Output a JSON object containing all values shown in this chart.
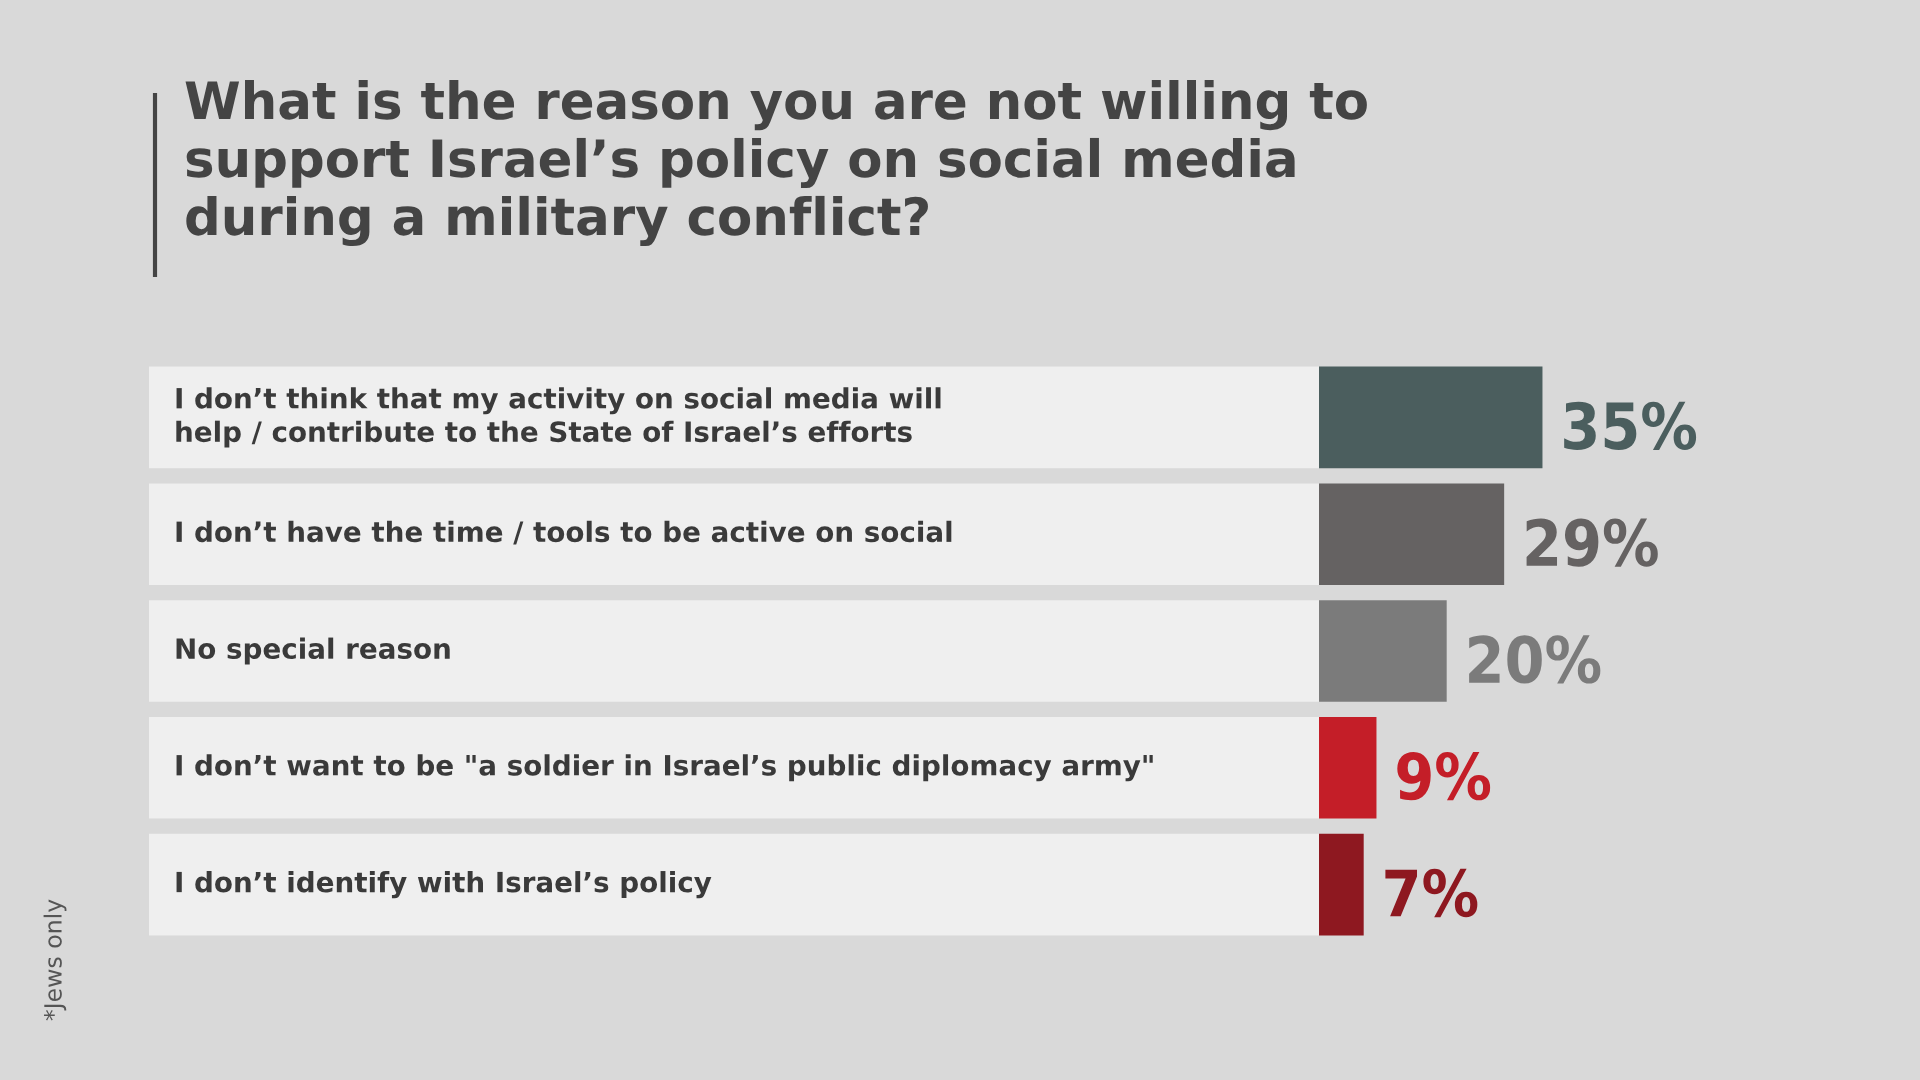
{
  "chart_data": {
    "type": "bar",
    "orientation": "horizontal",
    "title": "What is the reason you are not willing to\nsupport Israel’s policy on social media\nduring a military conflict?",
    "categories": [
      "I don’t think that my activity on social media will\nhelp / contribute to the State of Israel’s efforts",
      "I don’t have the time / tools to be active on social",
      "No special reason",
      "I don’t want to be \"a soldier in Israel’s public diplomacy army\"",
      "I don’t identify with Israel’s policy"
    ],
    "values": [
      35,
      29,
      20,
      9,
      7
    ],
    "colors": [
      "#4b5e5e",
      "#656262",
      "#7b7b7b",
      "#c41e28",
      "#8e1820"
    ],
    "value_labels": [
      "35%",
      "29%",
      "20%",
      "9%",
      "7%"
    ],
    "annotations": [
      "*Jews only"
    ]
  }
}
